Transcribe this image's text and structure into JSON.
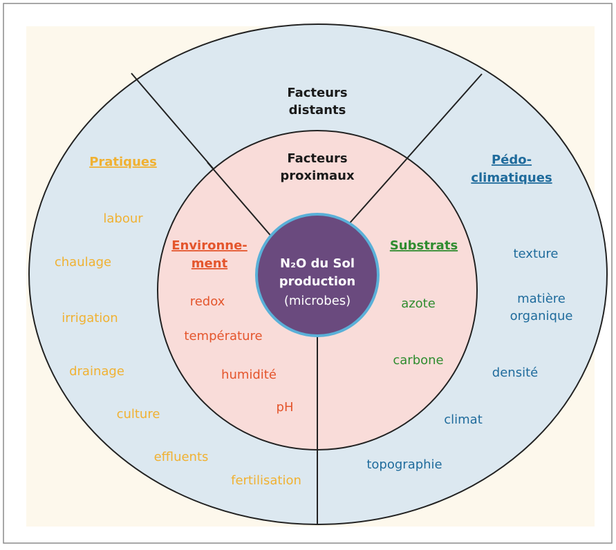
{
  "distant": {
    "title": [
      "Facteurs",
      "distants"
    ]
  },
  "proximal": {
    "title": [
      "Facteurs",
      "proximaux"
    ]
  },
  "pratiques": {
    "title": "Pratiques",
    "items": [
      "labour",
      "chaulage",
      "irrigation",
      "drainage",
      "culture",
      "effluents",
      "fertilisation"
    ]
  },
  "pedoclimatiques": {
    "title": [
      "Pédo-",
      "climatiques"
    ],
    "items": [
      "texture",
      "matière",
      "organique",
      "densité",
      "climat",
      "topographie"
    ]
  },
  "environnement": {
    "title": [
      "Environne-",
      "ment"
    ],
    "items": [
      "redox",
      "température",
      "humidité",
      "pH"
    ]
  },
  "substrats": {
    "title": "Substrats",
    "items": [
      "azote",
      "carbone"
    ]
  },
  "center": {
    "lines": [
      "N₂O du Sol",
      "production",
      "(microbes)"
    ]
  }
}
